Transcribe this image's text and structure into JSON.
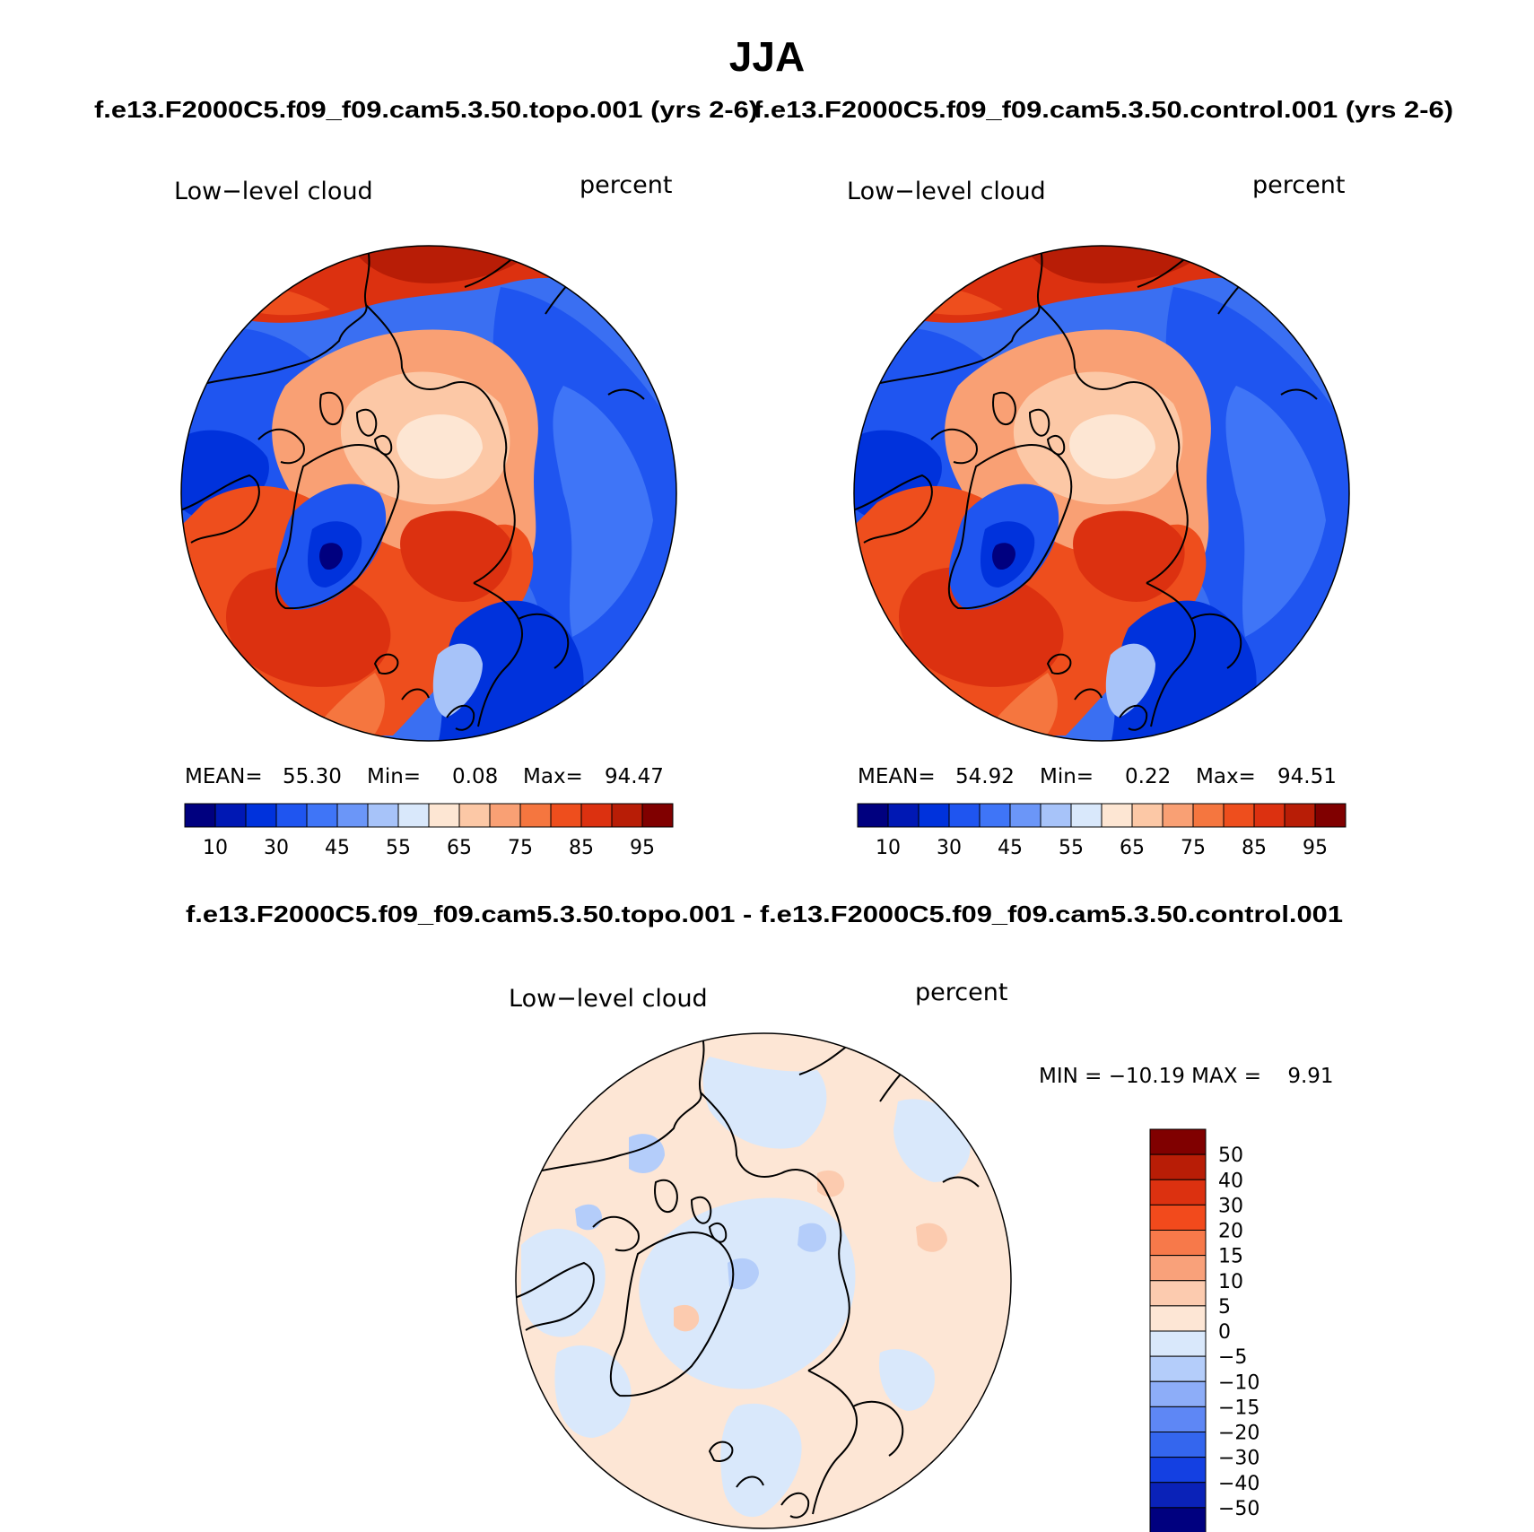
{
  "title": "JJA",
  "panels": [
    {
      "case_title": "f.e13.F2000C5.f09_f09.cam5.3.50.topo.001 (yrs 2-6)",
      "variable": "Low−level cloud",
      "units": "percent",
      "stats": {
        "mean_label": "MEAN=",
        "mean": "55.30",
        "min_label": "Min=",
        "min": "0.08",
        "max_label": "Max=",
        "max": "94.47"
      }
    },
    {
      "case_title": "f.e13.F2000C5.f09_f09.cam5.3.50.control.001 (yrs 2-6)",
      "variable": "Low−level cloud",
      "units": "percent",
      "stats": {
        "mean_label": "MEAN=",
        "mean": "54.92",
        "min_label": "Min=",
        "min": "0.22",
        "max_label": "Max=",
        "max": "94.51"
      }
    }
  ],
  "abs_colorbar": {
    "colors": [
      "#00007f",
      "#0018b4",
      "#0032dc",
      "#1f55f0",
      "#3f75f7",
      "#6b96f8",
      "#a7c3f9",
      "#d9e8fb",
      "#fde6d3",
      "#fcc8a6",
      "#f9a074",
      "#f5763f",
      "#ee4e1d",
      "#dc3110",
      "#b81d06",
      "#800000"
    ],
    "tick_labels": [
      "10",
      "30",
      "45",
      "55",
      "65",
      "75",
      "85",
      "95"
    ]
  },
  "diff": {
    "title": "f.e13.F2000C5.f09_f09.cam5.3.50.topo.001 - f.e13.F2000C5.f09_f09.cam5.3.50.control.001",
    "variable": "Low−level cloud",
    "units": "percent",
    "minmax": "MIN = −10.19 MAX =    9.91",
    "colorbar": {
      "colors": [
        "#800000",
        "#b81d06",
        "#dc3110",
        "#f24a1c",
        "#f7794a",
        "#f9a17a",
        "#fccbaf",
        "#fde6d5",
        "#d9e8fb",
        "#b4cdfa",
        "#8dadf8",
        "#5e87f5",
        "#3466ee",
        "#1440e2",
        "#0a22b8",
        "#00007f"
      ],
      "tick_labels": [
        "50",
        "40",
        "30",
        "20",
        "15",
        "10",
        "5",
        "0",
        "−5",
        "−10",
        "−15",
        "−20",
        "−30",
        "−40",
        "−50"
      ]
    }
  }
}
